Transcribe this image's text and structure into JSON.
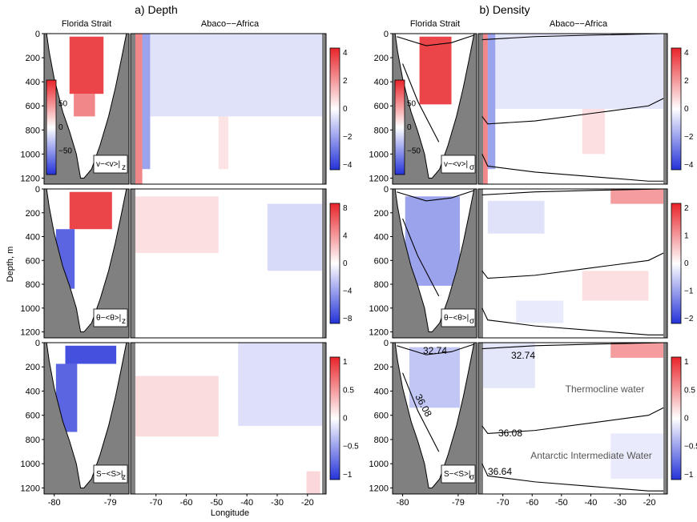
{
  "colors": {
    "positive": "#e8242a",
    "negative": "#2432d8",
    "land": "#808080",
    "background": "#ffffff"
  },
  "chart_data": {
    "type": "heatmap",
    "description_level": "multi-panel section anomalies",
    "xlabel": "Longitude",
    "ylabel": "Depth, m",
    "depth_ticks": [
      "0",
      "200",
      "400",
      "600",
      "800",
      "1000",
      "1200"
    ],
    "ylim": [
      1250,
      0
    ],
    "florida_lon_ticks": [
      "-80",
      "-79"
    ],
    "basin_lon_ticks": [
      "-70",
      "-60",
      "-50",
      "-40",
      "-30",
      "-20"
    ],
    "columns": [
      {
        "title": "a) Depth",
        "florida_title": "Florida Strait",
        "basin_title": "Abaco−−Africa"
      },
      {
        "title": "b) Density",
        "florida_title": "Florida Strait",
        "basin_title": "Abaco−−Africa"
      }
    ],
    "rows": [
      {
        "variable": "v",
        "florida_colorbar_ticks": [
          "50",
          "0",
          "−50"
        ],
        "basin_colorbar_ticks": [
          "4",
          "2",
          "0",
          "−2",
          "−4"
        ]
      },
      {
        "variable": "theta",
        "basin_colorbar_ticks_depth": [
          "8",
          "4",
          "0",
          "−4",
          "−8"
        ],
        "basin_colorbar_ticks_density": [
          "2",
          "1",
          "0",
          "−1",
          "−2"
        ]
      },
      {
        "variable": "S",
        "basin_colorbar_ticks": [
          "1",
          "0.5",
          "0",
          "−0.5",
          "−1"
        ]
      }
    ],
    "panel_labels": [
      [
        "v−<v>|",
        "z",
        "v−<v>|",
        "σ"
      ],
      [
        "θ−<θ>|",
        "z",
        "θ−<θ>|",
        "σ"
      ],
      [
        "S−<S>|",
        "z",
        "S−<S>|",
        "σ"
      ]
    ],
    "isopycnal_labels": [
      "32.74",
      "36.08",
      "36.64"
    ],
    "water_mass_labels": [
      "Thermocline water",
      "Antarctic Intermediate Water"
    ]
  }
}
